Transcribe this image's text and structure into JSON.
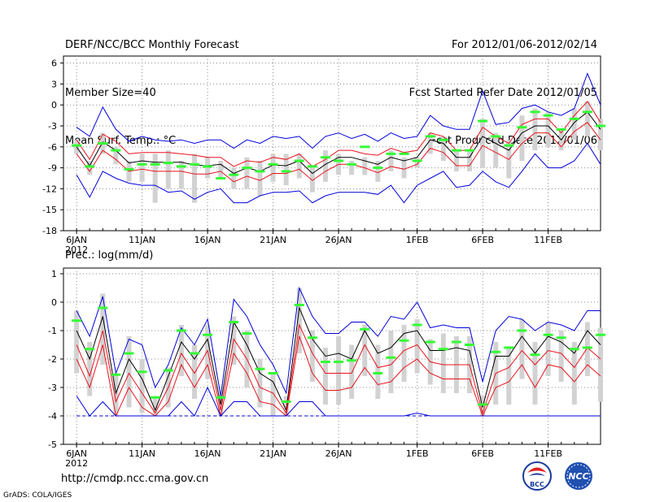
{
  "header": {
    "title": "DERF/NCC/BCC Monthly Forecast",
    "member_size": "Member Size=40",
    "variable": "Mean Surf. Temp.: °C",
    "period": "For 2012/01/06-2012/02/14",
    "started": "Fcst Started Refer Date 2012/01/05",
    "produced": "Fcst Produced Date 2012/01/06"
  },
  "footer": {
    "url": "http://cmdp.ncc.cma.gov.cn",
    "credit": "GrADS: COLA/IGES",
    "logo_left": "BCC",
    "logo_right": "NCC"
  },
  "colors": {
    "ens_mean": "#000000",
    "inner": "#e8141e",
    "outer": "#0000dc",
    "obs": "#33ff33",
    "box": "#d2d2d2"
  },
  "chart_data": [
    {
      "type": "line",
      "title": "Mean Surf. Temp.: °C",
      "x_ticks": [
        "6JAN\n2012",
        "11JAN",
        "16JAN",
        "21JAN",
        "26JAN",
        "1FEB",
        "6FEB",
        "11FEB"
      ],
      "x_tick_days": [
        0,
        5,
        10,
        15,
        20,
        26,
        31,
        36
      ],
      "xlim": [
        -1,
        40
      ],
      "ylim": [
        -18,
        7
      ],
      "yticks": [
        -18,
        -15,
        -12,
        -9,
        -6,
        -3,
        0,
        3,
        6
      ],
      "days": 40,
      "series": [
        {
          "name": "ensemble mean",
          "values": [
            -6,
            -8.7,
            -5.3,
            -6.5,
            -8.3,
            -8,
            -8.2,
            -8.2,
            -8.2,
            -8.6,
            -8.7,
            -8.5,
            -9.8,
            -9,
            -9.5,
            -8.6,
            -8.7,
            -8,
            -9.8,
            -8.5,
            -7.5,
            -7.5,
            -8,
            -8.5,
            -7.5,
            -8,
            -7.5,
            -5,
            -5.5,
            -7.5,
            -7.5,
            -4.5,
            -5.5,
            -6.5,
            -4,
            -3,
            -3,
            -5,
            -2.5,
            -1,
            -3.5
          ]
        },
        {
          "name": "upper inner",
          "values": [
            -5,
            -7.8,
            -4.2,
            -5.2,
            -7,
            -6.8,
            -6.8,
            -6.8,
            -7,
            -7.2,
            -7.5,
            -7.5,
            -8.8,
            -8,
            -8.2,
            -7.5,
            -7.8,
            -7,
            -8.8,
            -7.8,
            -6.5,
            -6.5,
            -7,
            -7.2,
            -6.2,
            -6.8,
            -6.5,
            -4,
            -4.5,
            -6.5,
            -6.5,
            -3.2,
            -4.5,
            -5.5,
            -2.8,
            -2,
            -2,
            -4,
            -1.5,
            0.5,
            -2.5
          ]
        },
        {
          "name": "lower inner",
          "values": [
            -7,
            -9.5,
            -6.5,
            -7.8,
            -9.5,
            -9.2,
            -9.5,
            -9.5,
            -9.5,
            -9.9,
            -9.9,
            -9.5,
            -11,
            -10.2,
            -10.8,
            -9.8,
            -9.8,
            -9.2,
            -10.8,
            -9.5,
            -8.5,
            -8.5,
            -9,
            -9.7,
            -8.8,
            -9.2,
            -8.5,
            -6.2,
            -6.8,
            -8.7,
            -8.7,
            -5.8,
            -6.8,
            -7.8,
            -5.5,
            -4,
            -4,
            -6,
            -3.8,
            -2.5,
            -5
          ]
        },
        {
          "name": "upper outer",
          "values": [
            -3.2,
            -4.5,
            -0.3,
            -3.5,
            -5.2,
            -4.5,
            -5,
            -5.2,
            -5,
            -5.5,
            -5,
            -5,
            -6.2,
            -5,
            -5.5,
            -4.5,
            -4.8,
            -4.5,
            -6.2,
            -4.5,
            -4,
            -4.8,
            -4.2,
            -5.2,
            -4,
            -4.8,
            -4.5,
            -1.5,
            -3,
            -3.5,
            -3.5,
            2,
            -2.8,
            -2.5,
            -0.5,
            0,
            -1,
            -1.5,
            -0.5,
            4.5,
            0
          ]
        },
        {
          "name": "lower outer",
          "values": [
            -10,
            -13.2,
            -9.5,
            -10.5,
            -11.2,
            -11.5,
            -11.5,
            -12.5,
            -12.3,
            -13.5,
            -12.5,
            -12,
            -14,
            -14,
            -13,
            -12.5,
            -12.5,
            -12.3,
            -14,
            -13,
            -12.5,
            -12.5,
            -12.5,
            -12.8,
            -11.5,
            -14,
            -11.5,
            -10.5,
            -9.5,
            -11.8,
            -11.5,
            -9.5,
            -11,
            -11.8,
            -9.5,
            -7,
            -9,
            -9,
            -8,
            -5.5,
            -8.5
          ]
        }
      ],
      "box_upper": [
        -5,
        -8,
        -4,
        -6,
        -8,
        -7,
        -7,
        -6.5,
        -8,
        -7,
        -7.5,
        -8,
        -9,
        -7.5,
        -8,
        -7,
        -7,
        -7,
        -9,
        -6.5,
        -7,
        -8,
        -7.5,
        -8,
        -6.5,
        -7.5,
        -7.5,
        -4,
        -4.5,
        -6.5,
        -6.5,
        -2,
        -4,
        -5,
        -1.5,
        -0.5,
        -1,
        -3.5,
        -0.5,
        0.5,
        -2
      ],
      "box_lower": [
        -7,
        -10,
        -7,
        -8.5,
        -11,
        -11,
        -14,
        -12,
        -12,
        -14,
        -10.5,
        -10.5,
        -12,
        -12,
        -13,
        -11,
        -11.5,
        -10.5,
        -12.5,
        -11,
        -10,
        -10,
        -10,
        -11,
        -9.5,
        -10.5,
        -9,
        -7,
        -8,
        -9.5,
        -9.5,
        -9,
        -9,
        -10.5,
        -8,
        -6.5,
        -6,
        -6.5,
        -5,
        -4.5,
        -6.5
      ],
      "obs": [
        -5.8,
        -8.8,
        -5.5,
        -6.5,
        -9.2,
        -8.5,
        -8.5,
        -8.3,
        -8.8,
        -8.5,
        -8.8,
        -10.5,
        -10,
        -9,
        -9.5,
        -8.5,
        -9.5,
        -8,
        -8.8,
        -7.5,
        -8,
        -8.5,
        -6,
        -9,
        -7,
        -7,
        -8,
        -4.5,
        -5,
        -6.5,
        -6.5,
        -2.3,
        -4.5,
        -5.8,
        -3.2,
        -1,
        -1.5,
        -3.5,
        -2,
        -1,
        -3
      ]
    },
    {
      "type": "line",
      "title": "Prec.: log(mm/d)",
      "x_ticks": [
        "6JAN\n2012",
        "11JAN",
        "16JAN",
        "21JAN",
        "26JAN",
        "1FEB",
        "6FEB",
        "11FEB"
      ],
      "x_tick_days": [
        0,
        5,
        10,
        15,
        20,
        26,
        31,
        36
      ],
      "xlim": [
        -1,
        40
      ],
      "ylim": [
        -5,
        1.2
      ],
      "yticks": [
        -5,
        -4,
        -3,
        -2,
        -1,
        0,
        1
      ],
      "days": 40,
      "series": [
        {
          "name": "ensemble mean",
          "values": [
            -1,
            -2,
            -0.5,
            -3.2,
            -2,
            -2.7,
            -3.8,
            -2.6,
            -1.4,
            -2,
            -1.3,
            -3.6,
            -0.7,
            -1.5,
            -2.5,
            -2.8,
            -3.8,
            -0.2,
            -1.3,
            -1.9,
            -1.8,
            -2,
            -1,
            -1.8,
            -1.6,
            -1.1,
            -1,
            -1.7,
            -1.7,
            -1.6,
            -1.7,
            -3.7,
            -1.9,
            -1.9,
            -1.2,
            -1.8,
            -1.2,
            -1.4,
            -1.8,
            -1,
            -1.5
          ]
        },
        {
          "name": "upper inner",
          "values": [
            -1.5,
            -2.6,
            -1,
            -3.5,
            -2.5,
            -3.2,
            -3.9,
            -3,
            -1.8,
            -2.5,
            -1.7,
            -3.8,
            -1.3,
            -2,
            -3,
            -3.2,
            -3.9,
            -0.8,
            -1.8,
            -2.5,
            -2.5,
            -2.5,
            -1.5,
            -2.3,
            -2.2,
            -1.7,
            -1.5,
            -2.1,
            -2.2,
            -2.2,
            -2.2,
            -3.9,
            -2.5,
            -2.3,
            -1.7,
            -2.2,
            -1.7,
            -1.8,
            -2.3,
            -1.6,
            -2
          ]
        },
        {
          "name": "lower inner",
          "values": [
            -2,
            -3,
            -1.5,
            -4,
            -3,
            -3.7,
            -4,
            -3.5,
            -2.2,
            -3,
            -2.2,
            -4,
            -1.8,
            -2.5,
            -3.5,
            -3.6,
            -4,
            -1.2,
            -2.5,
            -3.1,
            -3.1,
            -3,
            -2.3,
            -2.9,
            -2.8,
            -2.3,
            -2,
            -2.5,
            -2.7,
            -2.7,
            -2.7,
            -4,
            -3,
            -2.8,
            -2.2,
            -3,
            -2.2,
            -2.3,
            -2.8,
            -2.2,
            -2.6
          ]
        },
        {
          "name": "upper outer",
          "values": [
            -0.3,
            -1.2,
            0.2,
            -2.5,
            -1.3,
            -1.5,
            -3,
            -2.2,
            -0.9,
            -1.5,
            -0.6,
            -3.3,
            0.1,
            -0.5,
            -1.5,
            -2.2,
            -3.2,
            0.5,
            -0.5,
            -1.1,
            -1.1,
            -0.7,
            -0.7,
            -1.2,
            -0.5,
            -0.6,
            0,
            -0.9,
            -0.8,
            -0.9,
            -0.9,
            -2.8,
            -1,
            -0.5,
            -0.6,
            -1,
            -0.7,
            -0.8,
            -1,
            -0.3,
            -0.3
          ]
        },
        {
          "name": "lower outer",
          "values": [
            -3.3,
            -4,
            -3.5,
            -4,
            -4,
            -4,
            -4,
            -4,
            -3.5,
            -4,
            -3,
            -4,
            -3.5,
            -3.5,
            -4,
            -4,
            -4,
            -3.5,
            -3.5,
            -4,
            -4,
            -4,
            -4,
            -4,
            -4,
            -4,
            -3.9,
            -4,
            -4,
            -4,
            -4,
            -4,
            -4,
            -4,
            -4,
            -4,
            -4,
            -4,
            -4,
            -4,
            -4
          ]
        }
      ],
      "box_upper": [
        -0.3,
        -1.4,
        0.3,
        -2.5,
        -1.2,
        -2,
        -3.3,
        -2.3,
        -0.8,
        -1.5,
        -0.8,
        -3.3,
        -0.5,
        -1,
        -2,
        -2.5,
        -3.3,
        0.5,
        -1,
        -1.6,
        -1.2,
        -1.5,
        -0.8,
        -1.5,
        -1,
        -0.8,
        -0.6,
        -1.3,
        -1.1,
        -1.2,
        -1.2,
        -3.3,
        -1.4,
        -1.6,
        -0.6,
        -1.4,
        -0.7,
        -1,
        -1.4,
        -0.7,
        -0.9
      ],
      "box_lower": [
        -2.5,
        -3.3,
        -2.2,
        -4,
        -3.7,
        -3.9,
        -4,
        -3.7,
        -2.6,
        -3.4,
        -2.7,
        -4,
        -2.2,
        -3,
        -3.7,
        -4,
        -4,
        -1.8,
        -2.8,
        -3.6,
        -3.6,
        -3.4,
        -2.6,
        -3.4,
        -3.2,
        -2.8,
        -2.5,
        -2.9,
        -3.2,
        -3.2,
        -3.2,
        -4,
        -3.6,
        -3.6,
        -2.7,
        -3.6,
        -2.6,
        -2.8,
        -3.6,
        -2.6,
        -3.5
      ],
      "obs": [
        -0.65,
        -1.65,
        -0.2,
        -2.55,
        -1.8,
        -2.45,
        -3.35,
        -2.4,
        -1,
        -1.8,
        -1.15,
        -3.35,
        -0.7,
        -1.1,
        -2.35,
        -2.5,
        -3.5,
        -0.1,
        -1.25,
        -2.1,
        -2.1,
        -2.05,
        -0.95,
        -2.5,
        -1.95,
        -1.35,
        -0.8,
        -1.4,
        -1.65,
        -1.4,
        -1.5,
        -3.6,
        -1.75,
        -1.6,
        -1,
        -1.85,
        -1.15,
        -1.25,
        -1.65,
        -1.6,
        -1.15
      ]
    }
  ]
}
